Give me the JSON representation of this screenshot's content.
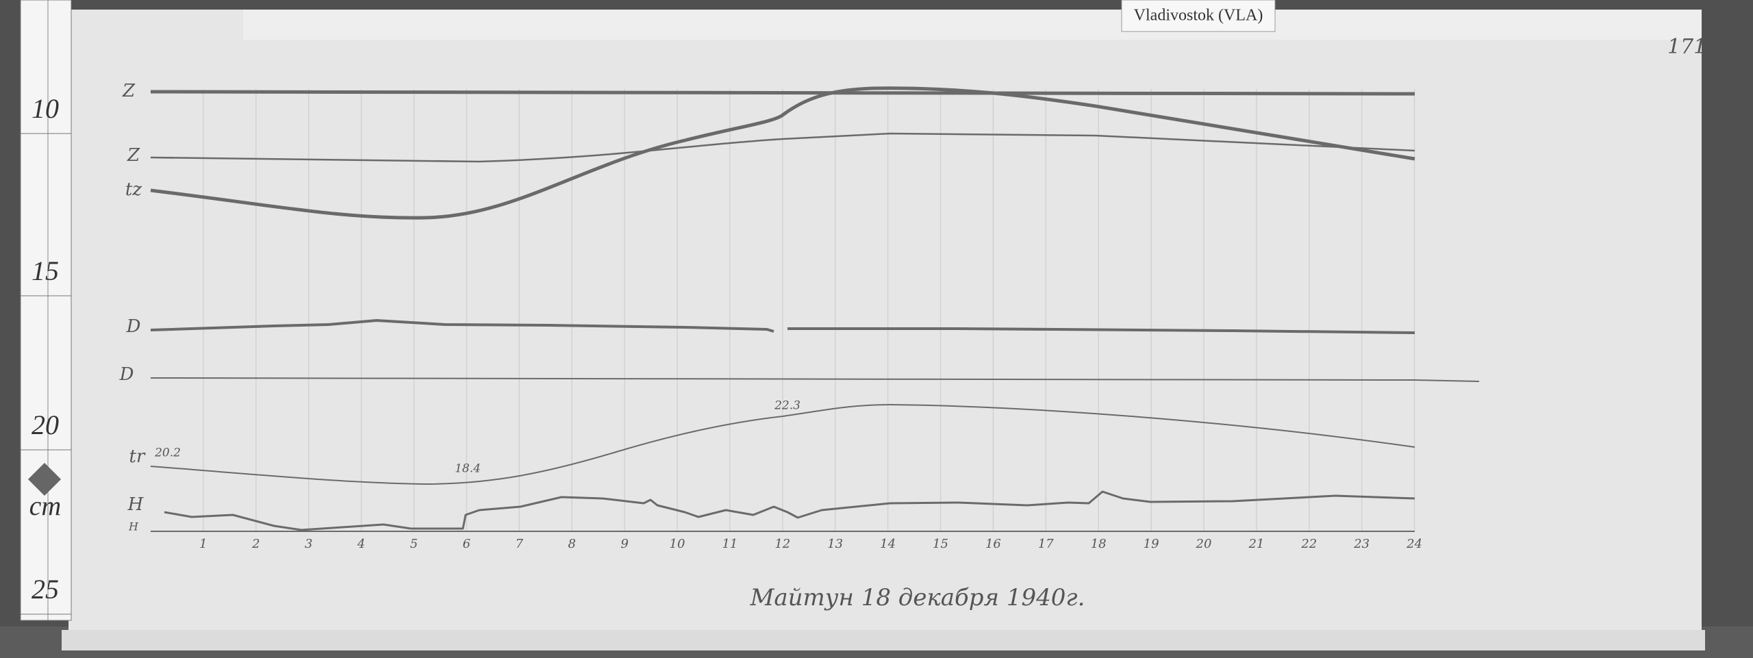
{
  "station_label": "Vladivostok (VLA)",
  "sheet_number": "171",
  "ruler": {
    "marks": [
      "10",
      "15",
      "20",
      "25"
    ],
    "unit": "cm"
  },
  "trace_labels": [
    "Z",
    "Z",
    "tz",
    "D",
    "D",
    "tr",
    "H",
    "H"
  ],
  "annotations": [
    "20.2",
    "18.4",
    "22.3"
  ],
  "hours": [
    "1",
    "2",
    "3",
    "4",
    "5",
    "6",
    "7",
    "8",
    "9",
    "10",
    "11",
    "12",
    "13",
    "14",
    "15",
    "16",
    "17",
    "18",
    "19",
    "20",
    "21",
    "22",
    "23",
    "24"
  ],
  "caption": "Майтун 18 декабря 1940г."
}
